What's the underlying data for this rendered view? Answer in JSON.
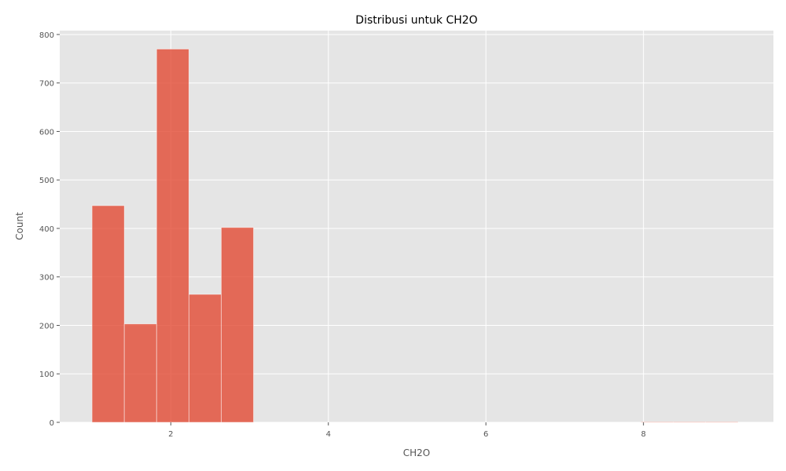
{
  "chart_data": {
    "type": "bar",
    "title": "Distribusi untuk CH2O",
    "xlabel": "CH2O",
    "ylabel": "Count",
    "xlim": [
      0.59,
      9.65
    ],
    "ylim": [
      0,
      808
    ],
    "x_ticks": [
      "2",
      "4",
      "6",
      "8"
    ],
    "y_ticks": [
      "0",
      "100",
      "200",
      "300",
      "400",
      "500",
      "600",
      "700",
      "800"
    ],
    "grid": true,
    "bins": [
      {
        "x0": 1.0,
        "x1": 1.41,
        "count": 447
      },
      {
        "x0": 1.41,
        "x1": 1.82,
        "count": 203
      },
      {
        "x0": 1.82,
        "x1": 2.23,
        "count": 770
      },
      {
        "x0": 2.23,
        "x1": 2.64,
        "count": 264
      },
      {
        "x0": 2.64,
        "x1": 3.05,
        "count": 402
      },
      {
        "x0": 3.05,
        "x1": 3.46,
        "count": 0
      },
      {
        "x0": 3.46,
        "x1": 3.87,
        "count": 0
      },
      {
        "x0": 3.87,
        "x1": 4.28,
        "count": 0
      },
      {
        "x0": 4.28,
        "x1": 4.69,
        "count": 0
      },
      {
        "x0": 4.69,
        "x1": 5.1,
        "count": 0
      },
      {
        "x0": 5.1,
        "x1": 5.51,
        "count": 0
      },
      {
        "x0": 5.51,
        "x1": 5.92,
        "count": 0
      },
      {
        "x0": 5.92,
        "x1": 6.33,
        "count": 0
      },
      {
        "x0": 6.33,
        "x1": 6.74,
        "count": 0
      },
      {
        "x0": 6.74,
        "x1": 7.15,
        "count": 0
      },
      {
        "x0": 7.15,
        "x1": 7.56,
        "count": 0
      },
      {
        "x0": 7.56,
        "x1": 7.97,
        "count": 0
      },
      {
        "x0": 7.97,
        "x1": 8.38,
        "count": 1
      },
      {
        "x0": 8.38,
        "x1": 8.79,
        "count": 1
      },
      {
        "x0": 8.79,
        "x1": 9.2,
        "count": 1
      }
    ],
    "colors": {
      "bar": "#e24a33",
      "bar_alpha": 0.8,
      "plot_bg": "#e5e5e5",
      "grid": "#ffffff",
      "text": "#555555"
    }
  }
}
